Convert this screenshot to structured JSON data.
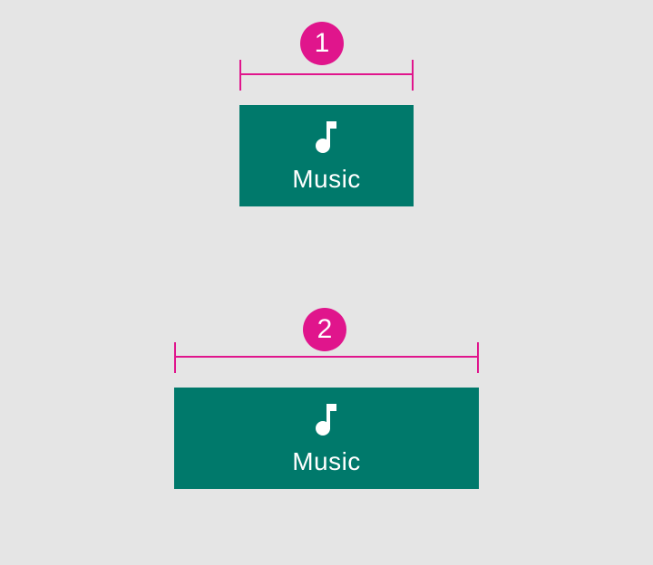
{
  "examples": [
    {
      "badge": "1",
      "tab_label": "Music",
      "tab_icon": "music-note-icon",
      "tab_color": "#00796b"
    },
    {
      "badge": "2",
      "tab_label": "Music",
      "tab_icon": "music-note-icon",
      "tab_color": "#00796b"
    }
  ],
  "annotation_color": "#e0158c",
  "background_color": "#e5e5e5"
}
